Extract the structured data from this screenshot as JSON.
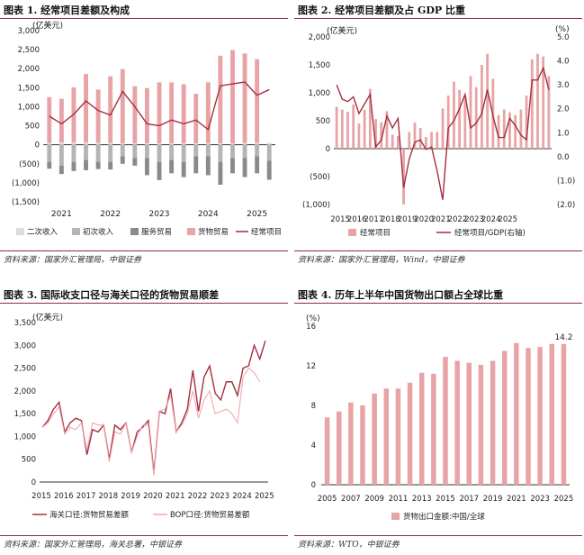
{
  "panels": [
    {
      "title": "图表 1. 经常项目差额及构成",
      "source": "资料来源：国家外汇管理局，中银证券"
    },
    {
      "title": "图表 2. 经常项目差额及占 GDP 比重",
      "source": "资料来源：国家外汇管理局，Wind，中银证券"
    },
    {
      "title": "图表 3. 国际收支口径与海关口径的货物贸易顺差",
      "source": "资料来源：国家外汇管理局，海关总署，中银证券"
    },
    {
      "title": "图表 4. 历年上半年中国货物出口额占全球比重",
      "source": "资料来源：WTO，中银证券"
    }
  ],
  "chart_data": [
    {
      "type": "bar",
      "title": "经常项目差额及构成",
      "ylabel": "(亿美元)",
      "ylim": [
        -1500,
        3000
      ],
      "yticks": [
        -1500,
        -1000,
        -500,
        0,
        500,
        1000,
        1500,
        2000,
        2500,
        3000
      ],
      "ytick_labels": [
        "(1,500)",
        "(1,000)",
        "(500)",
        "0",
        "500",
        "1,000",
        "1,500",
        "2,000",
        "2,500",
        "3,000"
      ],
      "x_labels": [
        "2021",
        "2022",
        "2023",
        "2024",
        "2025"
      ],
      "x_label_index": [
        1,
        5,
        9,
        13,
        17
      ],
      "n": 19,
      "series": [
        {
          "name": "二次收入",
          "color": "#dcdcdc",
          "values": [
            50,
            60,
            60,
            60,
            50,
            50,
            40,
            40,
            40,
            40,
            40,
            40,
            40,
            40,
            40,
            40,
            50,
            50,
            50
          ]
        },
        {
          "name": "初次收入",
          "color": "#b5b5b5",
          "values": [
            -450,
            -550,
            -450,
            -400,
            -450,
            -450,
            -300,
            -350,
            -350,
            -450,
            -400,
            -450,
            -300,
            -300,
            -450,
            -350,
            -350,
            -300,
            -420
          ]
        },
        {
          "name": "服务贸易",
          "color": "#8a8a8a",
          "values": [
            -180,
            -220,
            -240,
            -270,
            -190,
            -200,
            -200,
            -200,
            -450,
            -480,
            -350,
            -400,
            -450,
            -500,
            -600,
            -400,
            -500,
            -450,
            -500
          ]
        },
        {
          "name": "货物贸易",
          "color": "#e8a3a6",
          "values": [
            1200,
            1150,
            1450,
            1800,
            1400,
            1750,
            1950,
            1500,
            1450,
            1600,
            1600,
            1550,
            1300,
            1600,
            2300,
            2450,
            2350,
            2200,
            0
          ]
        },
        {
          "name": "经常项目",
          "color": "#a3303e",
          "values": [
            750,
            550,
            800,
            1150,
            900,
            780,
            1400,
            1000,
            550,
            500,
            650,
            550,
            650,
            400,
            1550,
            1600,
            1650,
            1300,
            1450
          ]
        }
      ]
    },
    {
      "type": "bar+line",
      "title": "经常项目差额及占GDP比重",
      "ylabel": "(亿美元)",
      "y2label": "(%)",
      "ylim": [
        -1000,
        2000
      ],
      "yticks": [
        -1000,
        -500,
        0,
        500,
        1000,
        1500,
        2000
      ],
      "ytick_labels": [
        "(1,000)",
        "(500)",
        "0",
        "500",
        "1,000",
        "1,500",
        "2,000"
      ],
      "y2lim": [
        -2.0,
        5.0
      ],
      "y2ticks": [
        -2,
        -1,
        0,
        1,
        2,
        3,
        4,
        5
      ],
      "y2tick_labels": [
        "(2.0)",
        "(1.0)",
        "0.0",
        "1.0",
        "2.0",
        "3.0",
        "4.0",
        "5.0"
      ],
      "x_labels": [
        "2015",
        "2016",
        "2017",
        "2018",
        "2019",
        "2020",
        "2021",
        "2022",
        "2023",
        "2024",
        "2025"
      ],
      "series": [
        {
          "name": "经常项目",
          "color": "#e8a3a6",
          "values": [
            750,
            700,
            660,
            790,
            450,
            700,
            1070,
            530,
            470,
            670,
            250,
            230,
            -1000,
            300,
            470,
            370,
            210,
            300,
            300,
            720,
            950,
            1200,
            1050,
            920,
            1300,
            1100,
            1500,
            1700,
            1250,
            600,
            700,
            650,
            600,
            700,
            950,
            1600,
            1700,
            1650,
            1300
          ]
        },
        {
          "name": "经常项目/GDP(右轴)",
          "color": "#a3303e",
          "axis": "right",
          "values": [
            3.0,
            2.4,
            2.3,
            2.5,
            1.8,
            2.2,
            2.6,
            0.4,
            0.7,
            1.7,
            1.2,
            1.6,
            -1.3,
            -0.1,
            0.6,
            0.7,
            0.3,
            0.4,
            -0.6,
            -1.8,
            1.2,
            1.5,
            2.0,
            2.6,
            1.2,
            1.4,
            1.8,
            2.8,
            1.7,
            0.8,
            0.8,
            1.6,
            1.3,
            0.9,
            0.7,
            3.2,
            3.2,
            3.7,
            2.8
          ]
        }
      ]
    },
    {
      "type": "line",
      "title": "国际收支口径与海关口径的货物贸易顺差",
      "ylabel": "(亿美元)",
      "ylim": [
        0,
        3500
      ],
      "yticks": [
        0,
        500,
        1000,
        1500,
        2000,
        2500,
        3000,
        3500
      ],
      "ytick_labels": [
        "0",
        "500",
        "1,000",
        "1,500",
        "2,000",
        "2,500",
        "3,000",
        "3,500"
      ],
      "x_labels": [
        "2015",
        "2016",
        "2017",
        "2018",
        "2019",
        "2020",
        "2021",
        "2022",
        "2023",
        "2024",
        "2025"
      ],
      "series": [
        {
          "name": "海关口径:货物贸易差额",
          "color": "#a3303e",
          "values": [
            1200,
            1350,
            1600,
            1750,
            1100,
            1300,
            1400,
            1350,
            600,
            1150,
            1100,
            1250,
            500,
            1250,
            1150,
            1300,
            650,
            1100,
            1200,
            1350,
            200,
            1550,
            1500,
            2050,
            1100,
            1300,
            1600,
            2450,
            1550,
            2300,
            2550,
            1950,
            1800,
            2200,
            2200,
            1900,
            2500,
            2550,
            3000,
            2700,
            3100
          ]
        },
        {
          "name": "BOP口径:货物贸易差额",
          "color": "#f0a8ad",
          "values": [
            1200,
            1300,
            1500,
            1650,
            1050,
            1200,
            1150,
            1300,
            700,
            1300,
            1250,
            1250,
            450,
            1100,
            1050,
            1300,
            650,
            1000,
            1250,
            1250,
            150,
            1550,
            1600,
            1900,
            1100,
            1250,
            1500,
            2000,
            1400,
            1800,
            2000,
            1500,
            1550,
            1600,
            1500,
            1300,
            2300,
            2500,
            2400,
            2200
          ]
        }
      ]
    },
    {
      "type": "bar",
      "title": "历年上半年中国货物出口额占全球比重",
      "ylabel": "(%)",
      "ylim": [
        0,
        16
      ],
      "yticks": [
        0,
        4,
        8,
        12,
        16
      ],
      "ytick_labels": [
        "0",
        "4",
        "8",
        "12",
        "16"
      ],
      "categories": [
        "2005",
        "2006",
        "2007",
        "2008",
        "2009",
        "2010",
        "2011",
        "2012",
        "2013",
        "2014",
        "2015",
        "2016",
        "2017",
        "2018",
        "2019",
        "2020",
        "2021",
        "2022",
        "2023",
        "2024",
        "2025"
      ],
      "x_labels": [
        "2005",
        "2007",
        "2009",
        "2011",
        "2013",
        "2015",
        "2017",
        "2019",
        "2021",
        "2023",
        "2025"
      ],
      "series": [
        {
          "name": "货物出口金额:中国/全球",
          "color": "#e8a3a6",
          "values": [
            6.8,
            7.4,
            8.3,
            8.0,
            9.2,
            9.7,
            9.7,
            10.3,
            11.3,
            11.2,
            12.9,
            12.5,
            12.3,
            12.1,
            12.5,
            13.5,
            14.3,
            13.8,
            13.9,
            14.2,
            14.2
          ]
        }
      ],
      "annotation": "14.2"
    }
  ]
}
